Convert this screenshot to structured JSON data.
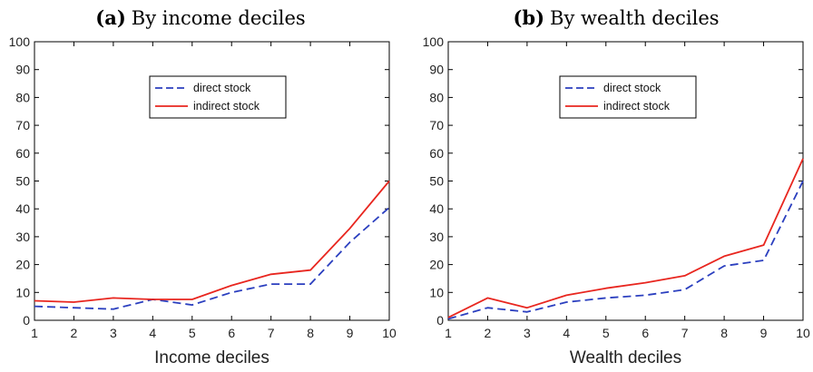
{
  "chart_data": [
    {
      "type": "line",
      "title_letter": "(a)",
      "title": "By income deciles",
      "xlabel": "Income deciles",
      "ylabel": "",
      "xlim": [
        1,
        10
      ],
      "ylim": [
        0,
        100
      ],
      "xticks": [
        1,
        2,
        3,
        4,
        5,
        6,
        7,
        8,
        9,
        10
      ],
      "yticks": [
        0,
        10,
        20,
        30,
        40,
        50,
        60,
        70,
        80,
        90,
        100
      ],
      "x": [
        1,
        2,
        3,
        4,
        5,
        6,
        7,
        8,
        9,
        10
      ],
      "series": [
        {
          "name": "direct stock",
          "color": "#2b3fbf",
          "style": "dashed",
          "values": [
            5,
            4.5,
            4,
            7.5,
            5.5,
            10,
            13,
            13,
            28,
            40.5
          ]
        },
        {
          "name": "indirect stock",
          "color": "#e8261f",
          "style": "solid",
          "values": [
            7,
            6.5,
            8,
            7.5,
            7.5,
            12.5,
            16.5,
            18,
            33,
            50
          ]
        }
      ],
      "legend_position": "top-center",
      "grid": false
    },
    {
      "type": "line",
      "title_letter": "(b)",
      "title": "By wealth deciles",
      "xlabel": "Wealth deciles",
      "ylabel": "",
      "xlim": [
        1,
        10
      ],
      "ylim": [
        0,
        100
      ],
      "xticks": [
        1,
        2,
        3,
        4,
        5,
        6,
        7,
        8,
        9,
        10
      ],
      "yticks": [
        0,
        10,
        20,
        30,
        40,
        50,
        60,
        70,
        80,
        90,
        100
      ],
      "x": [
        1,
        2,
        3,
        4,
        5,
        6,
        7,
        8,
        9,
        10
      ],
      "series": [
        {
          "name": "direct stock",
          "color": "#2b3fbf",
          "style": "dashed",
          "values": [
            0.5,
            4.5,
            3,
            6.5,
            8,
            9,
            11,
            19.5,
            21.5,
            50
          ]
        },
        {
          "name": "indirect stock",
          "color": "#e8261f",
          "style": "solid",
          "values": [
            1,
            8,
            4.5,
            9,
            11.5,
            13.5,
            16,
            23,
            27,
            58
          ]
        }
      ],
      "legend_position": "top-center",
      "grid": false
    }
  ]
}
